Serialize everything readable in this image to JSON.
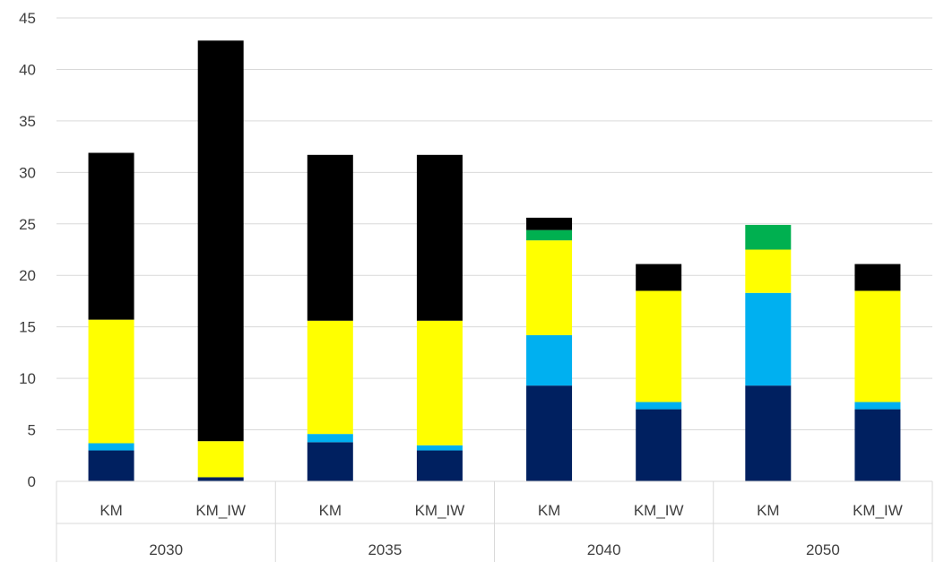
{
  "chart_data": {
    "type": "bar",
    "stacked": true,
    "title": "",
    "xlabel": "",
    "ylabel": "",
    "ylim": [
      0,
      45
    ],
    "yticks": [
      0,
      5,
      10,
      15,
      20,
      25,
      30,
      35,
      40,
      45
    ],
    "grid": true,
    "legend": "none",
    "groups": [
      {
        "label": "2030",
        "categories": [
          "KM",
          "KM_IW"
        ]
      },
      {
        "label": "2035",
        "categories": [
          "KM",
          "KM_IW"
        ]
      },
      {
        "label": "2040",
        "categories": [
          "KM",
          "KM_IW"
        ]
      },
      {
        "label": "2050",
        "categories": [
          "KM",
          "KM_IW"
        ]
      }
    ],
    "categories": [
      "KM",
      "KM_IW",
      "KM",
      "KM_IW",
      "KM",
      "KM_IW",
      "KM",
      "KM_IW"
    ],
    "series": [
      {
        "color": "#002060",
        "values": [
          3.0,
          0.4,
          3.8,
          3.0,
          9.3,
          7.0,
          9.3,
          7.0
        ]
      },
      {
        "color": "#00B0F0",
        "values": [
          0.7,
          0.0,
          0.8,
          0.5,
          4.9,
          0.7,
          9.0,
          0.7
        ]
      },
      {
        "color": "#FFFF00",
        "values": [
          12.0,
          3.5,
          11.0,
          12.1,
          9.2,
          10.8,
          4.2,
          10.8
        ]
      },
      {
        "color": "#00B050",
        "values": [
          0.0,
          0.0,
          0.0,
          0.0,
          1.0,
          0.0,
          2.4,
          0.0
        ]
      },
      {
        "color": "#000000",
        "values": [
          16.2,
          38.9,
          16.1,
          16.1,
          1.2,
          2.6,
          0.0,
          2.6
        ]
      }
    ]
  }
}
